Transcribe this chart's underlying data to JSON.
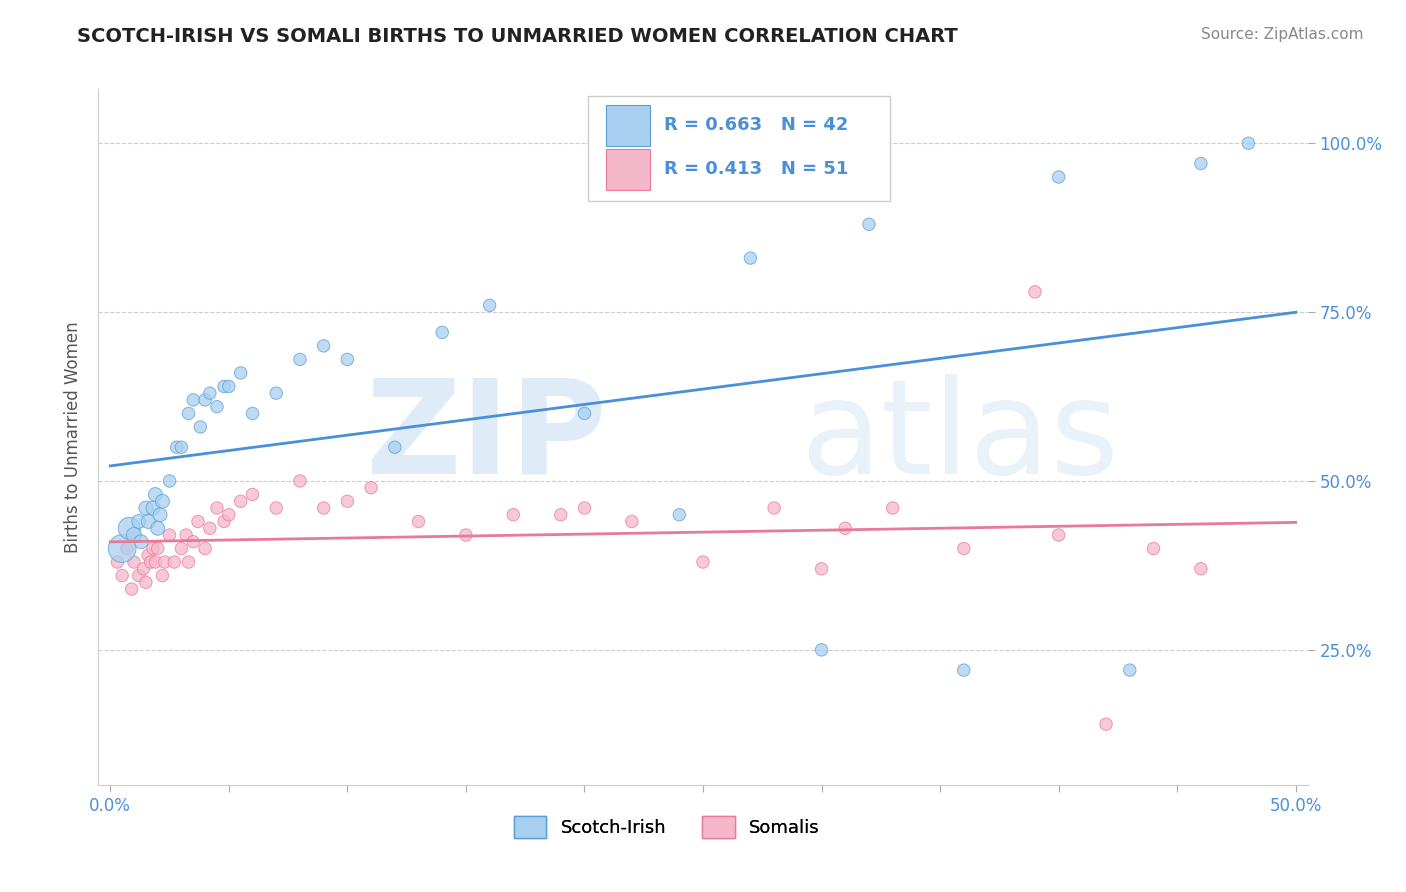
{
  "title": "SCOTCH-IRISH VS SOMALI BIRTHS TO UNMARRIED WOMEN CORRELATION CHART",
  "source_text": "Source: ZipAtlas.com",
  "ylabel": "Births to Unmarried Women",
  "watermark_zip": "ZIP",
  "watermark_atlas": "atlas",
  "xlim": [
    -0.005,
    0.505
  ],
  "ylim": [
    0.05,
    1.08
  ],
  "xtick_positions": [
    0.0,
    0.05,
    0.1,
    0.15,
    0.2,
    0.25,
    0.3,
    0.35,
    0.4,
    0.45,
    0.5
  ],
  "xtick_labels": [
    "0.0%",
    "",
    "",
    "",
    "",
    "",
    "",
    "",
    "",
    "",
    "50.0%"
  ],
  "ytick_positions": [
    0.25,
    0.5,
    0.75,
    1.0
  ],
  "ytick_labels": [
    "25.0%",
    "50.0%",
    "75.0%",
    "100.0%"
  ],
  "scotch_irish_R": 0.663,
  "scotch_irish_N": 42,
  "somali_R": 0.413,
  "somali_N": 51,
  "scotch_irish_color": "#a8cff0",
  "somali_color": "#f5b8cb",
  "scotch_irish_edge_color": "#5a9fd4",
  "somali_edge_color": "#e87a9a",
  "scotch_irish_line_color": "#4a90d9",
  "somali_line_color": "#e8799a",
  "legend_scotch_label": "Scotch-Irish",
  "legend_somali_label": "Somalis",
  "background_color": "#ffffff",
  "grid_color": "#cccccc",
  "scotch_irish_x": [
    0.005,
    0.008,
    0.01,
    0.012,
    0.013,
    0.015,
    0.016,
    0.018,
    0.019,
    0.02,
    0.021,
    0.022,
    0.025,
    0.028,
    0.03,
    0.033,
    0.035,
    0.038,
    0.04,
    0.042,
    0.045,
    0.048,
    0.05,
    0.055,
    0.06,
    0.07,
    0.08,
    0.09,
    0.1,
    0.12,
    0.14,
    0.16,
    0.2,
    0.24,
    0.27,
    0.3,
    0.32,
    0.36,
    0.4,
    0.43,
    0.46,
    0.48
  ],
  "scotch_irish_y": [
    0.4,
    0.43,
    0.42,
    0.44,
    0.41,
    0.46,
    0.44,
    0.46,
    0.48,
    0.43,
    0.45,
    0.47,
    0.5,
    0.55,
    0.55,
    0.6,
    0.62,
    0.58,
    0.62,
    0.63,
    0.61,
    0.64,
    0.64,
    0.66,
    0.6,
    0.63,
    0.68,
    0.7,
    0.68,
    0.55,
    0.72,
    0.76,
    0.6,
    0.45,
    0.83,
    0.25,
    0.88,
    0.22,
    0.95,
    0.22,
    0.97,
    1.0
  ],
  "scotch_irish_sizes": [
    400,
    250,
    120,
    100,
    100,
    100,
    100,
    100,
    100,
    100,
    100,
    100,
    80,
    80,
    80,
    80,
    80,
    80,
    80,
    80,
    80,
    80,
    80,
    80,
    80,
    80,
    80,
    80,
    80,
    80,
    80,
    80,
    80,
    80,
    80,
    80,
    80,
    80,
    80,
    80,
    80,
    80
  ],
  "somali_x": [
    0.003,
    0.005,
    0.007,
    0.009,
    0.01,
    0.012,
    0.014,
    0.015,
    0.016,
    0.017,
    0.018,
    0.019,
    0.02,
    0.022,
    0.023,
    0.025,
    0.027,
    0.03,
    0.032,
    0.033,
    0.035,
    0.037,
    0.04,
    0.042,
    0.045,
    0.048,
    0.05,
    0.055,
    0.06,
    0.07,
    0.08,
    0.09,
    0.1,
    0.11,
    0.13,
    0.15,
    0.17,
    0.19,
    0.2,
    0.22,
    0.25,
    0.28,
    0.3,
    0.31,
    0.33,
    0.36,
    0.39,
    0.4,
    0.42,
    0.44,
    0.46
  ],
  "somali_y": [
    0.38,
    0.36,
    0.4,
    0.34,
    0.38,
    0.36,
    0.37,
    0.35,
    0.39,
    0.38,
    0.4,
    0.38,
    0.4,
    0.36,
    0.38,
    0.42,
    0.38,
    0.4,
    0.42,
    0.38,
    0.41,
    0.44,
    0.4,
    0.43,
    0.46,
    0.44,
    0.45,
    0.47,
    0.48,
    0.46,
    0.5,
    0.46,
    0.47,
    0.49,
    0.44,
    0.42,
    0.45,
    0.45,
    0.46,
    0.44,
    0.38,
    0.46,
    0.37,
    0.43,
    0.46,
    0.4,
    0.78,
    0.42,
    0.14,
    0.4,
    0.37
  ],
  "somali_sizes": [
    80,
    80,
    80,
    80,
    80,
    80,
    80,
    80,
    80,
    80,
    80,
    80,
    80,
    80,
    80,
    80,
    80,
    80,
    80,
    80,
    80,
    80,
    80,
    80,
    80,
    80,
    80,
    80,
    80,
    80,
    80,
    80,
    80,
    80,
    80,
    80,
    80,
    80,
    80,
    80,
    80,
    80,
    80,
    80,
    80,
    80,
    80,
    80,
    80,
    80,
    80
  ]
}
